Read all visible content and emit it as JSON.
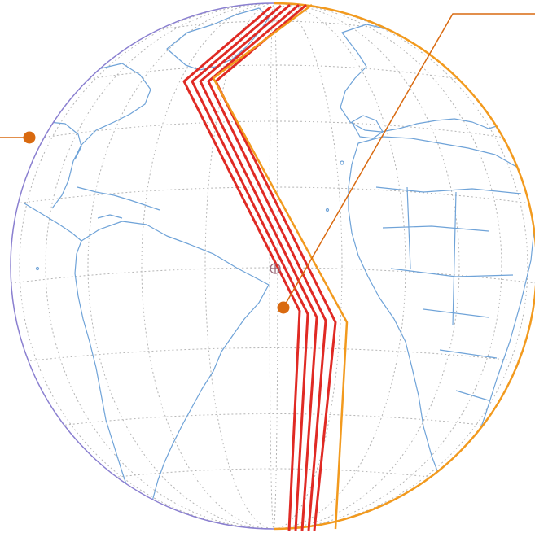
{
  "map": {
    "projection": "orthographic-globe",
    "view_center": {
      "lat": -5,
      "lon": -25
    },
    "graticule_step_deg": 15,
    "colors": {
      "background": "#ffffff",
      "coastline": "#6fa3d8",
      "graticule": "#b5b5b5",
      "limb_left": "#8a7fd0",
      "limb_right": "#f29a1e",
      "track": "#e02a24",
      "outer_track": "#f29a1e",
      "callout": "#d96a10",
      "center_marker": "#9a6a7a"
    },
    "icons": {
      "center_marker": "crosshair-circle-icon",
      "callout_points": "dot-icon"
    },
    "callouts": [
      {
        "name": "callout-west",
        "target": "western-limb"
      },
      {
        "name": "callout-northeast",
        "target": "track-band"
      }
    ],
    "labels": []
  }
}
